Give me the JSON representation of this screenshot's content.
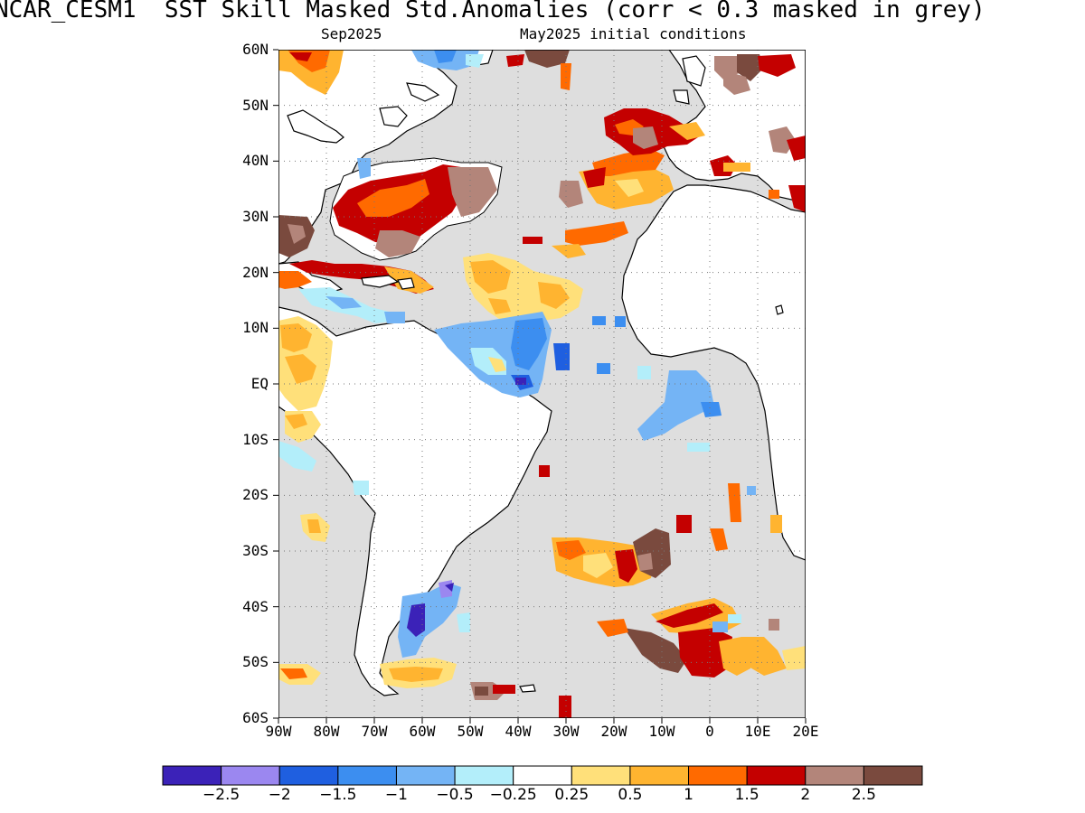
{
  "title": "NCAR_CESM1  SST Skill Masked Std.Anomalies (corr < 0.3 masked in grey)",
  "subtitle_left": "Sep2025",
  "subtitle_right": "May2025 initial conditions",
  "lat_labels": [
    "60N",
    "50N",
    "40N",
    "30N",
    "20N",
    "10N",
    "EQ",
    "10S",
    "20S",
    "30S",
    "40S",
    "50S",
    "60S"
  ],
  "lon_labels": [
    "90W",
    "80W",
    "70W",
    "60W",
    "50W",
    "40W",
    "30W",
    "20W",
    "10W",
    "0",
    "10E",
    "20E"
  ],
  "colorbar": {
    "colors": [
      "#3b22b8",
      "#9b87f0",
      "#1f5fe0",
      "#3c8ef0",
      "#74b4f5",
      "#b3eefa",
      "#ffffff",
      "#ffe07a",
      "#ffb430",
      "#ff6a00",
      "#c40000",
      "#b3857a",
      "#7a4a3e"
    ],
    "labels": [
      "−2.5",
      "−2",
      "−1.5",
      "−1",
      "−0.5",
      "−0.25",
      "0.25",
      "0.5",
      "1",
      "1.5",
      "2",
      "2.5"
    ]
  },
  "mask_color": "#dedede"
}
